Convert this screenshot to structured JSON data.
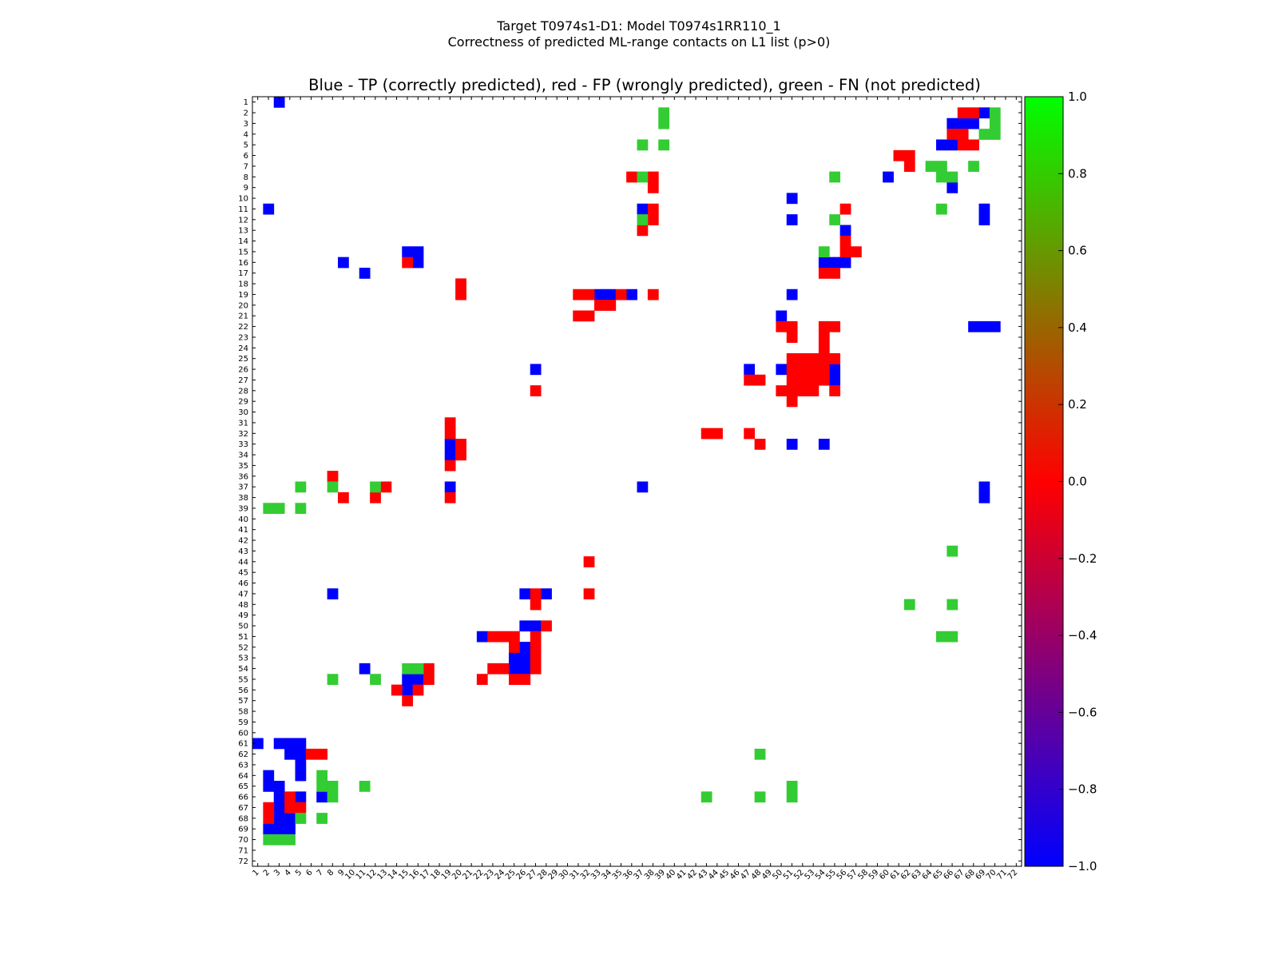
{
  "figure": {
    "suptitle_line1": "Target T0974s1-D1: Model T0974s1RR110_1",
    "suptitle_line2": "Correctness of predicted ML-range contacts on L1 list (p>0)"
  },
  "chart_data": {
    "type": "heatmap",
    "title": "Blue - TP (correctly predicted), red - FP (wrongly predicted), green - FN (not predicted)",
    "xlabel": "",
    "ylabel": "",
    "x_range": [
      1,
      72
    ],
    "y_range": [
      1,
      72
    ],
    "x_tick_labels": [
      "1",
      "2",
      "3",
      "4",
      "5",
      "6",
      "7",
      "8",
      "9",
      "10",
      "11",
      "12",
      "13",
      "14",
      "15",
      "16",
      "17",
      "18",
      "19",
      "20",
      "21",
      "22",
      "23",
      "24",
      "25",
      "26",
      "27",
      "28",
      "29",
      "30",
      "31",
      "32",
      "33",
      "34",
      "35",
      "36",
      "37",
      "38",
      "39",
      "40",
      "41",
      "42",
      "43",
      "44",
      "45",
      "46",
      "47",
      "48",
      "49",
      "50",
      "51",
      "52",
      "53",
      "54",
      "55",
      "56",
      "57",
      "58",
      "59",
      "60",
      "61",
      "62",
      "63",
      "64",
      "65",
      "66",
      "67",
      "68",
      "69",
      "70",
      "71",
      "72"
    ],
    "y_tick_labels": [
      "1",
      "2",
      "3",
      "4",
      "5",
      "6",
      "7",
      "8",
      "9",
      "10",
      "11",
      "12",
      "13",
      "14",
      "15",
      "16",
      "17",
      "18",
      "19",
      "20",
      "21",
      "22",
      "23",
      "24",
      "25",
      "26",
      "27",
      "28",
      "29",
      "30",
      "31",
      "32",
      "33",
      "34",
      "35",
      "36",
      "37",
      "38",
      "39",
      "40",
      "41",
      "42",
      "43",
      "44",
      "45",
      "46",
      "47",
      "48",
      "49",
      "50",
      "51",
      "52",
      "53",
      "54",
      "55",
      "56",
      "57",
      "58",
      "59",
      "60",
      "61",
      "62",
      "63",
      "64",
      "65",
      "66",
      "67",
      "68",
      "69",
      "70",
      "71",
      "72"
    ],
    "value_legend": {
      "TP": -1,
      "FP": 0,
      "FN": 0.8
    },
    "category_colors": {
      "TP": "#0000ff",
      "FP": "#ff0000",
      "FN": "#33cc33"
    },
    "cells": {
      "TP": [
        [
          69,
          2
        ],
        [
          68,
          3
        ],
        [
          67,
          3
        ],
        [
          66,
          3
        ],
        [
          66,
          5
        ],
        [
          65,
          5
        ],
        [
          60,
          8
        ],
        [
          66,
          9
        ],
        [
          51,
          10
        ],
        [
          2,
          11
        ],
        [
          69,
          11
        ],
        [
          37,
          11
        ],
        [
          51,
          12
        ],
        [
          69,
          12
        ],
        [
          56,
          13
        ],
        [
          51,
          19
        ],
        [
          33,
          19
        ],
        [
          34,
          19
        ],
        [
          36,
          19
        ],
        [
          50,
          21
        ],
        [
          68,
          22
        ],
        [
          69,
          22
        ],
        [
          70,
          22
        ],
        [
          69,
          37
        ],
        [
          69,
          38
        ],
        [
          11,
          54
        ],
        [
          27,
          26
        ],
        [
          50,
          26
        ],
        [
          55,
          26
        ],
        [
          55,
          27
        ],
        [
          51,
          33
        ],
        [
          54,
          33
        ],
        [
          19,
          33
        ],
        [
          19,
          34
        ],
        [
          37,
          37
        ],
        [
          19,
          37
        ],
        [
          28,
          47
        ],
        [
          26,
          47
        ],
        [
          26,
          50
        ],
        [
          27,
          50
        ],
        [
          22,
          51
        ],
        [
          16,
          55
        ],
        [
          15,
          55
        ],
        [
          15,
          56
        ],
        [
          3,
          61
        ],
        [
          4,
          61
        ],
        [
          4,
          62
        ],
        [
          5,
          62
        ],
        [
          5,
          63
        ],
        [
          2,
          65
        ],
        [
          3,
          65
        ],
        [
          3,
          66
        ],
        [
          7,
          66
        ],
        [
          5,
          66
        ],
        [
          2,
          69
        ],
        [
          3,
          69
        ],
        [
          4,
          69
        ],
        [
          5,
          64
        ],
        [
          47,
          26
        ],
        [
          1,
          61
        ],
        [
          3,
          67
        ],
        [
          2,
          64
        ],
        [
          3,
          68
        ],
        [
          8,
          47
        ],
        [
          5,
          61
        ],
        [
          4,
          68
        ],
        [
          15,
          15
        ],
        [
          11,
          17
        ],
        [
          56,
          16
        ],
        [
          9,
          16
        ],
        [
          16,
          15
        ],
        [
          16,
          16
        ],
        [
          3,
          1
        ],
        [
          26,
          52
        ],
        [
          26,
          54
        ],
        [
          25,
          53
        ],
        [
          26,
          53
        ],
        [
          54,
          16
        ],
        [
          55,
          16
        ],
        [
          25,
          54
        ]
      ],
      "FP": [
        [
          68,
          2
        ],
        [
          67,
          2
        ],
        [
          67,
          4
        ],
        [
          66,
          4
        ],
        [
          67,
          5
        ],
        [
          62,
          6
        ],
        [
          62,
          7
        ],
        [
          36,
          8
        ],
        [
          38,
          9
        ],
        [
          56,
          11
        ],
        [
          38,
          12
        ],
        [
          37,
          13
        ],
        [
          47,
          26
        ],
        [
          56,
          14
        ],
        [
          15,
          16
        ],
        [
          44,
          32
        ],
        [
          47,
          32
        ],
        [
          51,
          22
        ],
        [
          50,
          22
        ],
        [
          27,
          28
        ],
        [
          54,
          23
        ],
        [
          54,
          24
        ],
        [
          54,
          25
        ],
        [
          55,
          25
        ],
        [
          52,
          26
        ],
        [
          53,
          26
        ],
        [
          51,
          26
        ],
        [
          51,
          27
        ],
        [
          54,
          27
        ],
        [
          55,
          27
        ],
        [
          51,
          28
        ],
        [
          51,
          29
        ],
        [
          52,
          25
        ],
        [
          52,
          27
        ],
        [
          52,
          28
        ],
        [
          53,
          28
        ],
        [
          54,
          22
        ],
        [
          54,
          26
        ],
        [
          55,
          28
        ],
        [
          53,
          27
        ],
        [
          56,
          15
        ],
        [
          56,
          16
        ],
        [
          57,
          15
        ],
        [
          55,
          17
        ],
        [
          55,
          22
        ],
        [
          54,
          17
        ],
        [
          55,
          16
        ],
        [
          48,
          27
        ],
        [
          47,
          27
        ],
        [
          48,
          33
        ],
        [
          31,
          19
        ],
        [
          32,
          19
        ],
        [
          35,
          19
        ],
        [
          19,
          31
        ],
        [
          19,
          32
        ],
        [
          19,
          35
        ],
        [
          20,
          33
        ],
        [
          20,
          34
        ],
        [
          20,
          19
        ],
        [
          20,
          18
        ],
        [
          38,
          8
        ],
        [
          37,
          13
        ],
        [
          38,
          19
        ],
        [
          38,
          11
        ],
        [
          33,
          20
        ],
        [
          34,
          20
        ],
        [
          31,
          21
        ],
        [
          32,
          21
        ],
        [
          24,
          51
        ],
        [
          23,
          51
        ],
        [
          25,
          51
        ],
        [
          27,
          51
        ],
        [
          25,
          52
        ],
        [
          26,
          52
        ],
        [
          27,
          52
        ],
        [
          25,
          53
        ],
        [
          27,
          53
        ],
        [
          23,
          54
        ],
        [
          24,
          54
        ],
        [
          27,
          54
        ],
        [
          25,
          55
        ],
        [
          26,
          55
        ],
        [
          22,
          55
        ],
        [
          17,
          54
        ],
        [
          17,
          55
        ],
        [
          16,
          56
        ],
        [
          14,
          56
        ],
        [
          15,
          57
        ],
        [
          6,
          62
        ],
        [
          7,
          62
        ],
        [
          4,
          66
        ],
        [
          4,
          67
        ],
        [
          2,
          67
        ],
        [
          2,
          68
        ],
        [
          28,
          50
        ],
        [
          67,
          2
        ],
        [
          8,
          36
        ],
        [
          9,
          38
        ],
        [
          12,
          38
        ],
        [
          13,
          37
        ],
        [
          19,
          38
        ],
        [
          32,
          44
        ],
        [
          32,
          47
        ],
        [
          61,
          6
        ],
        [
          62,
          6
        ],
        [
          68,
          2
        ],
        [
          67,
          2
        ],
        [
          66,
          4
        ],
        [
          67,
          4
        ],
        [
          68,
          5
        ],
        [
          43,
          32
        ],
        [
          47,
          32
        ],
        [
          55,
          22
        ],
        [
          33,
          20
        ],
        [
          34,
          20
        ],
        [
          35,
          19
        ],
        [
          36,
          8
        ],
        [
          38,
          9
        ],
        [
          56,
          14
        ],
        [
          57,
          15
        ],
        [
          38,
          12
        ],
        [
          37,
          13
        ],
        [
          51,
          22
        ],
        [
          51,
          23
        ],
        [
          53,
          25
        ],
        [
          52,
          25
        ],
        [
          51,
          25
        ],
        [
          54,
          23
        ],
        [
          54,
          24
        ],
        [
          55,
          25
        ],
        [
          55,
          26
        ],
        [
          54,
          27
        ],
        [
          53,
          27
        ],
        [
          52,
          27
        ],
        [
          51,
          27
        ],
        [
          48,
          27
        ],
        [
          47,
          27
        ],
        [
          50,
          28
        ],
        [
          32,
          19
        ],
        [
          31,
          19
        ],
        [
          38,
          19
        ],
        [
          54,
          17
        ],
        [
          55,
          17
        ],
        [
          56,
          16
        ],
        [
          27,
          47
        ],
        [
          27,
          48
        ],
        [
          28,
          50
        ],
        [
          27,
          51
        ],
        [
          22,
          51
        ],
        [
          23,
          51
        ],
        [
          25,
          51
        ],
        [
          25,
          52
        ],
        [
          26,
          52
        ],
        [
          27,
          52
        ],
        [
          25,
          53
        ],
        [
          26,
          53
        ],
        [
          27,
          53
        ],
        [
          23,
          54
        ],
        [
          24,
          54
        ],
        [
          27,
          54
        ],
        [
          22,
          55
        ],
        [
          25,
          55
        ],
        [
          26,
          55
        ],
        [
          17,
          54
        ],
        [
          17,
          55
        ],
        [
          14,
          56
        ],
        [
          16,
          56
        ],
        [
          15,
          57
        ],
        [
          7,
          62
        ],
        [
          6,
          62
        ],
        [
          4,
          66
        ],
        [
          4,
          67
        ],
        [
          5,
          67
        ],
        [
          2,
          67
        ],
        [
          2,
          68
        ],
        [
          19,
          31
        ],
        [
          19,
          32
        ],
        [
          20,
          33
        ],
        [
          20,
          34
        ],
        [
          19,
          35
        ],
        [
          8,
          36
        ],
        [
          13,
          37
        ],
        [
          9,
          38
        ],
        [
          12,
          38
        ],
        [
          19,
          38
        ],
        [
          32,
          44
        ],
        [
          32,
          47
        ]
      ],
      "FN": [
        [
          39,
          2
        ],
        [
          39,
          3
        ],
        [
          70,
          2
        ],
        [
          70,
          3
        ],
        [
          69,
          4
        ],
        [
          70,
          4
        ],
        [
          68,
          5
        ],
        [
          37,
          5
        ],
        [
          39,
          5
        ],
        [
          64,
          7
        ],
        [
          65,
          7
        ],
        [
          68,
          7
        ],
        [
          37,
          8
        ],
        [
          65,
          8
        ],
        [
          66,
          8
        ],
        [
          55,
          8
        ],
        [
          65,
          11
        ],
        [
          55,
          12
        ],
        [
          37,
          12
        ],
        [
          54,
          15
        ],
        [
          54,
          16
        ],
        [
          66,
          43
        ],
        [
          62,
          48
        ],
        [
          66,
          48
        ],
        [
          65,
          51
        ],
        [
          66,
          51
        ],
        [
          8,
          55
        ],
        [
          12,
          55
        ],
        [
          15,
          54
        ],
        [
          16,
          54
        ],
        [
          5,
          37
        ],
        [
          8,
          37
        ],
        [
          12,
          37
        ],
        [
          2,
          39
        ],
        [
          3,
          39
        ],
        [
          5,
          39
        ],
        [
          48,
          62
        ],
        [
          7,
          64
        ],
        [
          7,
          65
        ],
        [
          8,
          65
        ],
        [
          8,
          66
        ],
        [
          11,
          65
        ],
        [
          5,
          68
        ],
        [
          7,
          68
        ],
        [
          4,
          69
        ],
        [
          2,
          70
        ],
        [
          3,
          70
        ],
        [
          4,
          70
        ],
        [
          43,
          66
        ],
        [
          48,
          66
        ],
        [
          51,
          65
        ],
        [
          51,
          66
        ]
      ]
    },
    "colorbar": {
      "ticks": [
        1.0,
        0.8,
        0.6,
        0.4,
        0.2,
        0.0,
        -0.2,
        -0.4,
        -0.6,
        -0.8,
        -1.0
      ],
      "tick_labels": [
        "1.0",
        "0.8",
        "0.6",
        "0.4",
        "0.2",
        "0.0",
        "−0.2",
        "−0.4",
        "−0.6",
        "−0.8",
        "−1.0"
      ],
      "range": [
        -1.0,
        1.0
      ],
      "stops": [
        {
          "value": 1.0,
          "color": "#00ff00"
        },
        {
          "value": 0.0,
          "color": "#ff0000"
        },
        {
          "value": -1.0,
          "color": "#0000ff"
        }
      ]
    }
  }
}
